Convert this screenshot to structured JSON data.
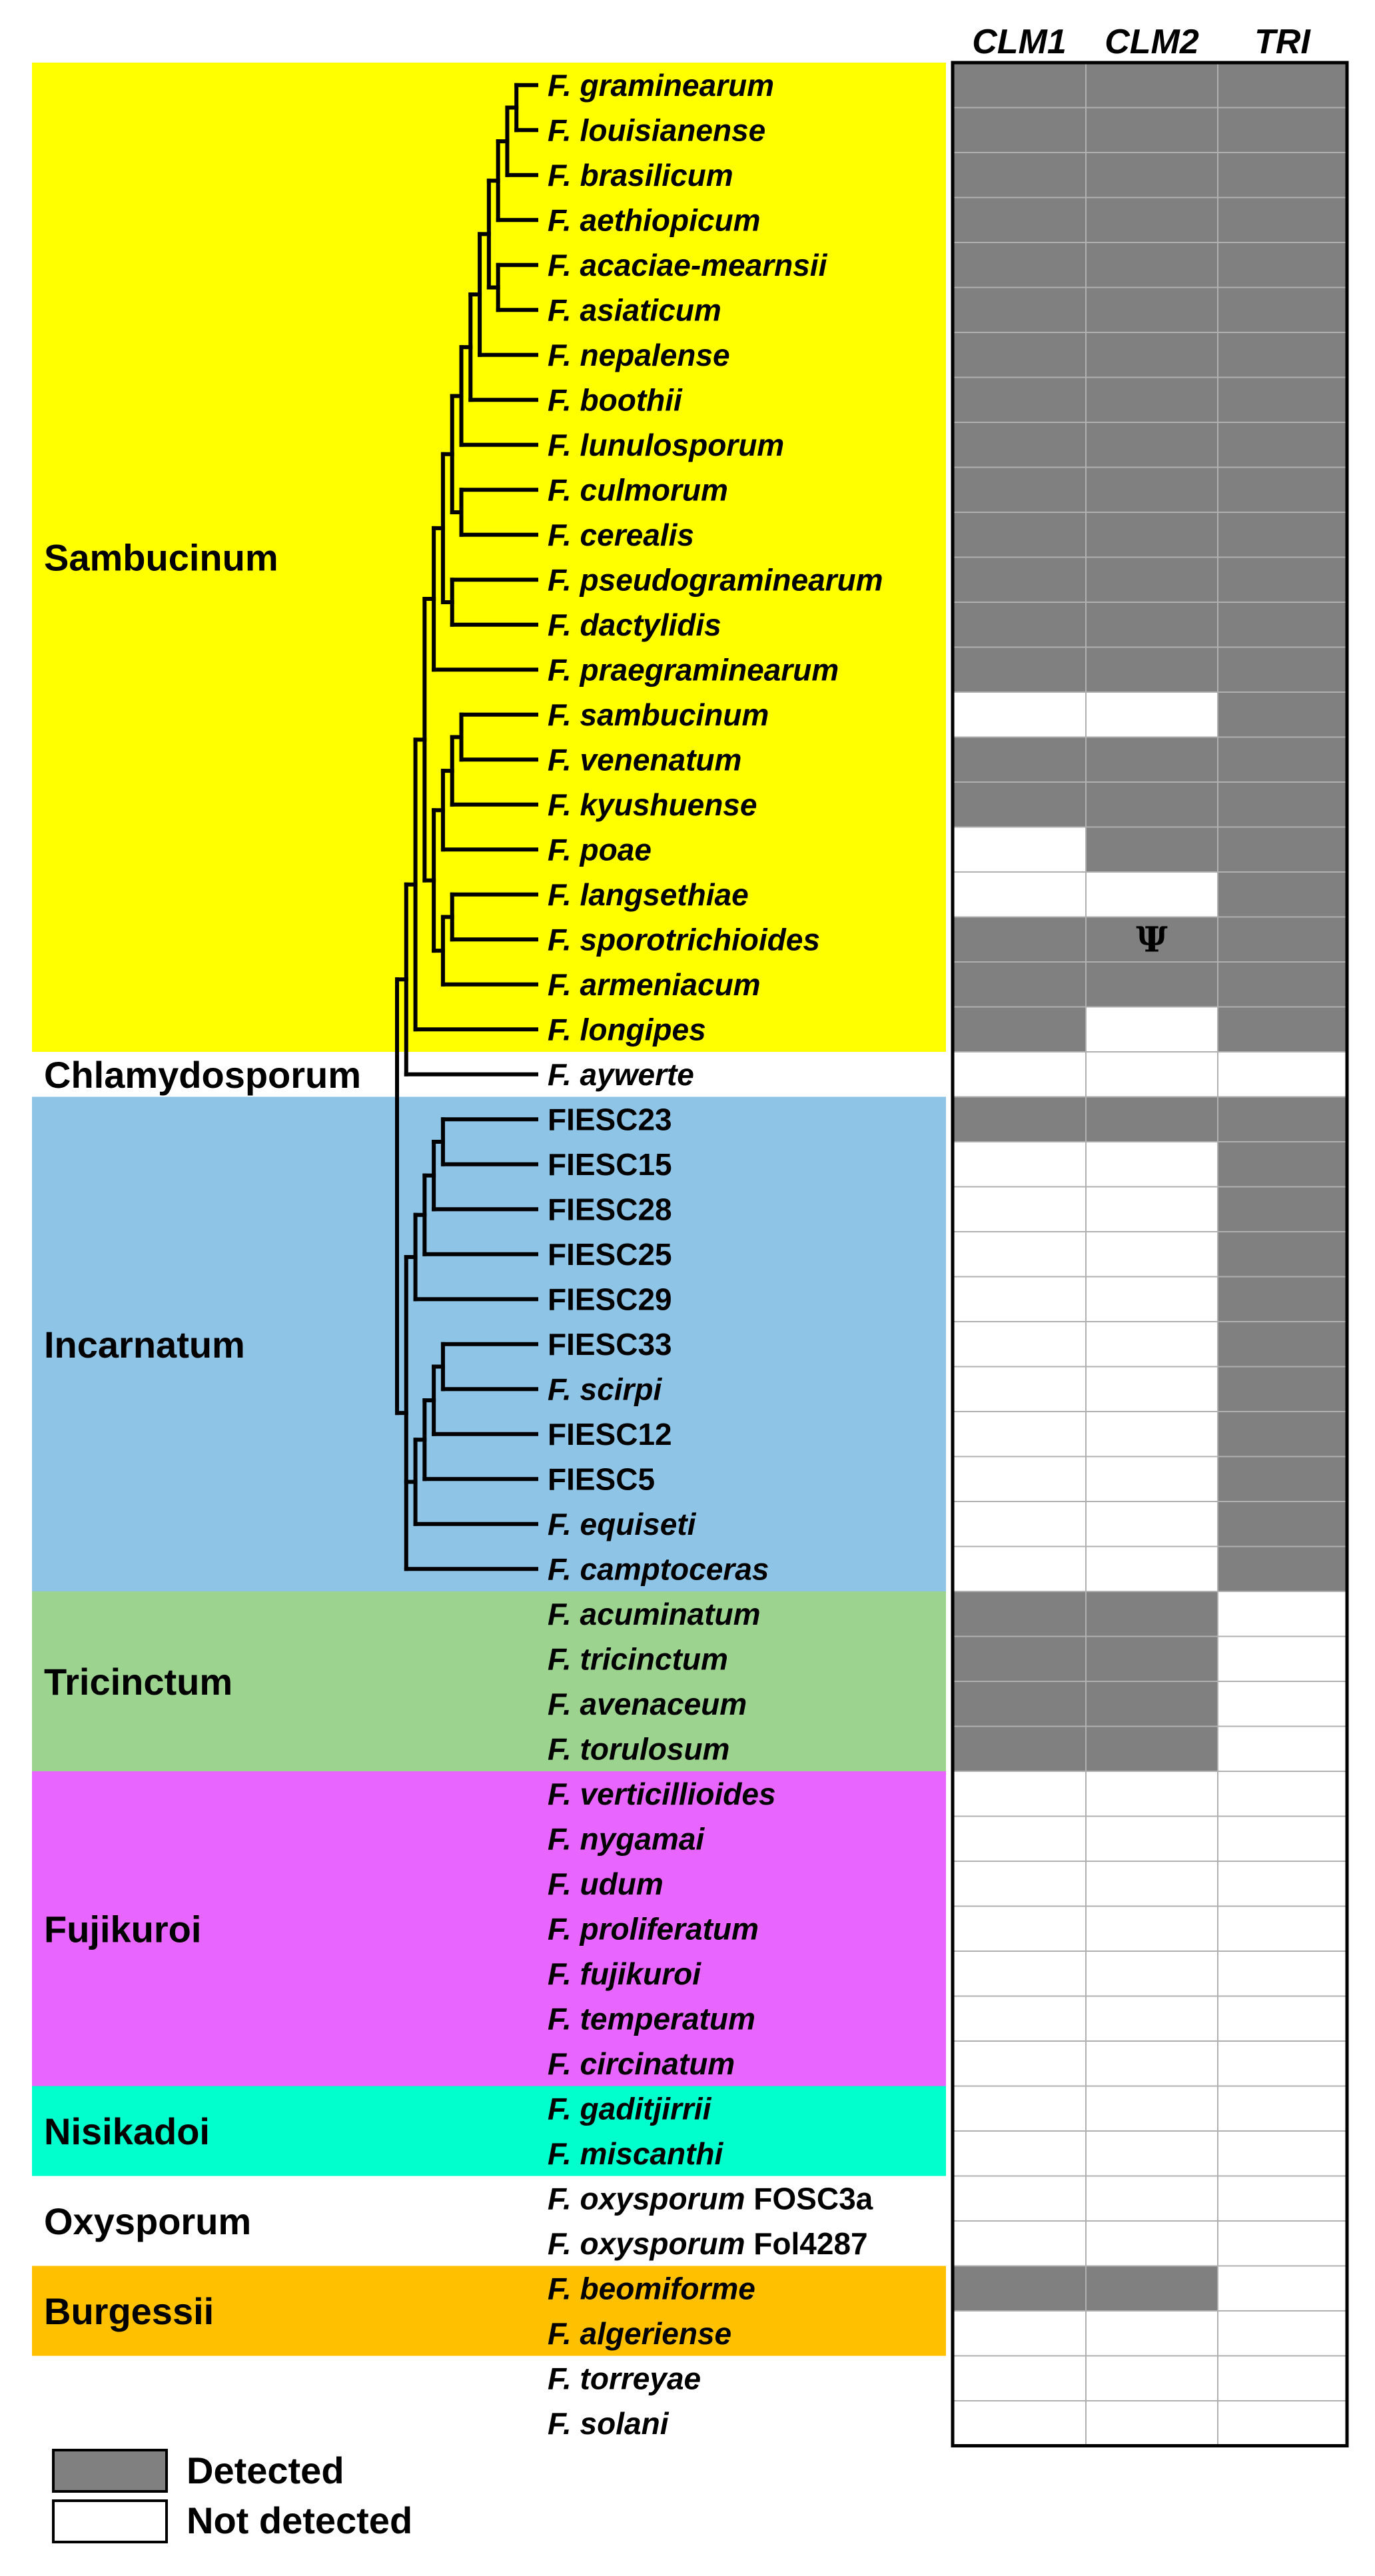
{
  "colors": {
    "Sambucinum": "#ffff00",
    "Chlamydosporum": "#ffffff",
    "Incarnatum": "#8ec4e6",
    "Tricinctum": "#9bd38f",
    "Fujikuroi": "#e866ff",
    "Nisikadoi": "#00ffcc",
    "Oxysporum": "#ffffff",
    "Burgessii": "#ffc000",
    "detected": "#808080",
    "not_detected": "#ffffff"
  },
  "columns": [
    "CLM1",
    "CLM2",
    "TRI"
  ],
  "clades": [
    {
      "name": "Sambucinum",
      "first": 0,
      "last": 21
    },
    {
      "name": "Chlamydosporum",
      "first": 22,
      "last": 22
    },
    {
      "name": "Incarnatum",
      "first": 23,
      "last": 33
    },
    {
      "name": "Tricinctum",
      "first": 34,
      "last": 37
    },
    {
      "name": "Fujikuroi",
      "first": 38,
      "last": 44
    },
    {
      "name": "Nisikadoi",
      "first": 45,
      "last": 46
    },
    {
      "name": "Oxysporum",
      "first": 47,
      "last": 48
    },
    {
      "name": "Burgessii",
      "first": 49,
      "last": 50
    }
  ],
  "taxa": [
    {
      "prefix": "F. ",
      "name": "graminearum",
      "suffix": "",
      "calls": [
        1,
        1,
        1
      ]
    },
    {
      "prefix": "F. ",
      "name": "louisianense",
      "suffix": "",
      "calls": [
        1,
        1,
        1
      ]
    },
    {
      "prefix": "F. ",
      "name": "brasilicum",
      "suffix": "",
      "calls": [
        1,
        1,
        1
      ]
    },
    {
      "prefix": "F. ",
      "name": "aethiopicum",
      "suffix": "",
      "calls": [
        1,
        1,
        1
      ]
    },
    {
      "prefix": "F. ",
      "name": "acaciae-mearnsii",
      "suffix": "",
      "calls": [
        1,
        1,
        1
      ]
    },
    {
      "prefix": "F. ",
      "name": "asiaticum",
      "suffix": "",
      "calls": [
        1,
        1,
        1
      ]
    },
    {
      "prefix": "F. ",
      "name": "nepalense",
      "suffix": "",
      "calls": [
        1,
        1,
        1
      ]
    },
    {
      "prefix": "F. ",
      "name": "boothii",
      "suffix": "",
      "calls": [
        1,
        1,
        1
      ]
    },
    {
      "prefix": "F. ",
      "name": "lunulosporum",
      "suffix": "",
      "calls": [
        1,
        1,
        1
      ]
    },
    {
      "prefix": "F. ",
      "name": "culmorum",
      "suffix": "",
      "calls": [
        1,
        1,
        1
      ]
    },
    {
      "prefix": "F. ",
      "name": "cerealis",
      "suffix": "",
      "calls": [
        1,
        1,
        1
      ]
    },
    {
      "prefix": "F. ",
      "name": "pseudograminearum",
      "suffix": "",
      "calls": [
        1,
        1,
        1
      ]
    },
    {
      "prefix": "F. ",
      "name": "dactylidis",
      "suffix": "",
      "calls": [
        1,
        1,
        1
      ]
    },
    {
      "prefix": "F. ",
      "name": "praegraminearum",
      "suffix": "",
      "calls": [
        1,
        1,
        1
      ]
    },
    {
      "prefix": "F. ",
      "name": "sambucinum",
      "suffix": "",
      "calls": [
        0,
        0,
        1
      ]
    },
    {
      "prefix": "F. ",
      "name": "venenatum",
      "suffix": "",
      "calls": [
        1,
        1,
        1
      ]
    },
    {
      "prefix": "F. ",
      "name": "kyushuense",
      "suffix": "",
      "calls": [
        1,
        1,
        1
      ]
    },
    {
      "prefix": "F. ",
      "name": "poae",
      "suffix": "",
      "calls": [
        0,
        1,
        1
      ]
    },
    {
      "prefix": "F. ",
      "name": "langsethiae",
      "suffix": "",
      "calls": [
        0,
        0,
        1
      ]
    },
    {
      "prefix": "F. ",
      "name": "sporotrichioides",
      "suffix": "",
      "calls": [
        1,
        2,
        1
      ]
    },
    {
      "prefix": "F. ",
      "name": "armeniacum",
      "suffix": "",
      "calls": [
        1,
        1,
        1
      ]
    },
    {
      "prefix": "F. ",
      "name": "longipes",
      "suffix": "",
      "calls": [
        1,
        0,
        1
      ]
    },
    {
      "prefix": "F. ",
      "name": "aywerte",
      "suffix": "",
      "calls": [
        0,
        0,
        0
      ]
    },
    {
      "prefix": "",
      "name": "",
      "suffix": "FIESC23",
      "calls": [
        1,
        1,
        1
      ]
    },
    {
      "prefix": "",
      "name": "",
      "suffix": "FIESC15",
      "calls": [
        0,
        0,
        1
      ]
    },
    {
      "prefix": "",
      "name": "",
      "suffix": "FIESC28",
      "calls": [
        0,
        0,
        1
      ]
    },
    {
      "prefix": "",
      "name": "",
      "suffix": "FIESC25",
      "calls": [
        0,
        0,
        1
      ]
    },
    {
      "prefix": "",
      "name": "",
      "suffix": "FIESC29",
      "calls": [
        0,
        0,
        1
      ]
    },
    {
      "prefix": "",
      "name": "",
      "suffix": "FIESC33",
      "calls": [
        0,
        0,
        1
      ]
    },
    {
      "prefix": "F. ",
      "name": "scirpi",
      "suffix": "",
      "calls": [
        0,
        0,
        1
      ]
    },
    {
      "prefix": "",
      "name": "",
      "suffix": "FIESC12",
      "calls": [
        0,
        0,
        1
      ]
    },
    {
      "prefix": "",
      "name": "",
      "suffix": "FIESC5",
      "calls": [
        0,
        0,
        1
      ]
    },
    {
      "prefix": "F. ",
      "name": "equiseti",
      "suffix": "",
      "calls": [
        0,
        0,
        1
      ]
    },
    {
      "prefix": "F. ",
      "name": "camptoceras",
      "suffix": "",
      "calls": [
        0,
        0,
        1
      ]
    },
    {
      "prefix": "F. ",
      "name": "acuminatum",
      "suffix": "",
      "calls": [
        1,
        1,
        0
      ]
    },
    {
      "prefix": "F. ",
      "name": "tricinctum",
      "suffix": "",
      "calls": [
        1,
        1,
        0
      ]
    },
    {
      "prefix": "F. ",
      "name": "avenaceum",
      "suffix": "",
      "calls": [
        1,
        1,
        0
      ]
    },
    {
      "prefix": "F. ",
      "name": "torulosum",
      "suffix": "",
      "calls": [
        1,
        1,
        0
      ]
    },
    {
      "prefix": "F. ",
      "name": "verticillioides",
      "suffix": "",
      "calls": [
        0,
        0,
        0
      ]
    },
    {
      "prefix": "F. ",
      "name": "nygamai",
      "suffix": "",
      "calls": [
        0,
        0,
        0
      ]
    },
    {
      "prefix": "F. ",
      "name": "udum",
      "suffix": "",
      "calls": [
        0,
        0,
        0
      ]
    },
    {
      "prefix": "F. ",
      "name": "proliferatum",
      "suffix": "",
      "calls": [
        0,
        0,
        0
      ]
    },
    {
      "prefix": "F. ",
      "name": "fujikuroi",
      "suffix": "",
      "calls": [
        0,
        0,
        0
      ]
    },
    {
      "prefix": "F. ",
      "name": "temperatum",
      "suffix": "",
      "calls": [
        0,
        0,
        0
      ]
    },
    {
      "prefix": "F. ",
      "name": "circinatum",
      "suffix": "",
      "calls": [
        0,
        0,
        0
      ]
    },
    {
      "prefix": "F. ",
      "name": "gaditjirrii",
      "suffix": "",
      "calls": [
        0,
        0,
        0
      ]
    },
    {
      "prefix": "F. ",
      "name": "miscanthi",
      "suffix": "",
      "calls": [
        0,
        0,
        0
      ]
    },
    {
      "prefix": "F. ",
      "name": "oxysporum",
      "suffix": " FOSC3a",
      "calls": [
        0,
        0,
        0
      ]
    },
    {
      "prefix": "F. ",
      "name": "oxysporum",
      "suffix": " Fol4287",
      "calls": [
        0,
        0,
        0
      ]
    },
    {
      "prefix": "F. ",
      "name": "beomiforme",
      "suffix": "",
      "calls": [
        1,
        1,
        0
      ]
    },
    {
      "prefix": "F. ",
      "name": "algeriense",
      "suffix": "",
      "calls": [
        0,
        0,
        0
      ]
    },
    {
      "prefix": "F. ",
      "name": "torreyae",
      "suffix": "",
      "calls": [
        0,
        0,
        0
      ]
    },
    {
      "prefix": "F. ",
      "name": "solani",
      "suffix": "",
      "calls": [
        0,
        0,
        0
      ]
    }
  ],
  "pseudogene_symbol": "Ψ",
  "legend": {
    "detected": "Detected",
    "not_detected": "Not detected"
  },
  "tree_newick": "((((((((((((((0,1),2),3),(4,5)),6),7),8),(9,10)),(11,12)),13),((((14,15),16),17),((18,19),20))),21),22),(((((23,24),25),26),27),((((28,29),30),31),32),33)),(((34,35),36),37)),(((((((((38,39),40),(41,42)),(43,44)),(45,46)),(47,48)),(49,50)),51),52))"
}
